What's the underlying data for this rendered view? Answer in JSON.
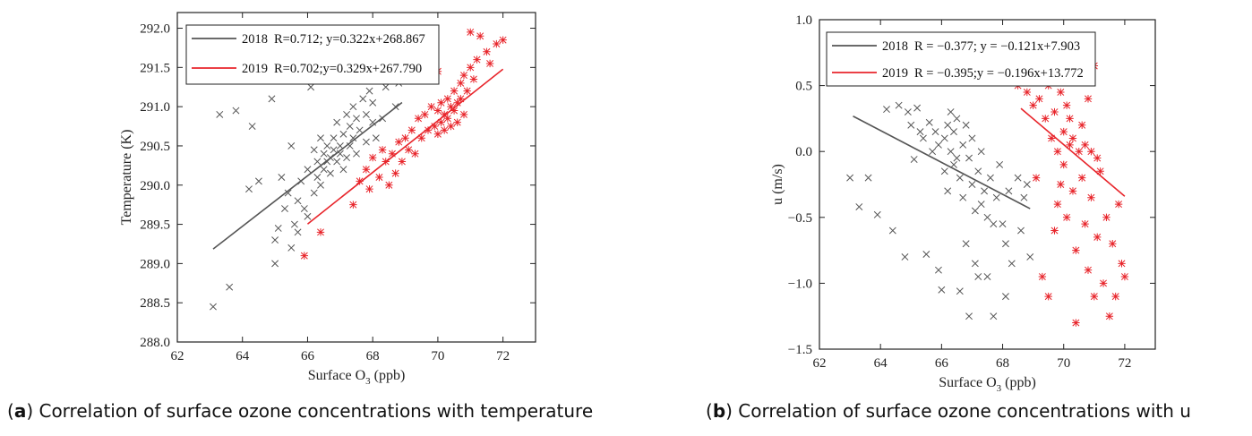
{
  "chart_data": [
    {
      "type": "scatter",
      "panel": "a",
      "xlabel_main": "Surface O",
      "xlabel_sub": "3",
      "xlabel_unit": " (ppb)",
      "ylabel": "Temperature (K)",
      "xlim": [
        62,
        73
      ],
      "ylim": [
        288.0,
        292.2
      ],
      "xticks": [
        "62",
        "64",
        "66",
        "68",
        "70",
        "72"
      ],
      "xtick_values": [
        62,
        64,
        66,
        68,
        70,
        72
      ],
      "yticks": [
        "288.0",
        "288.5",
        "289.0",
        "289.5",
        "290.0",
        "290.5",
        "291.0",
        "291.5",
        "292.0"
      ],
      "ytick_values": [
        288.0,
        288.5,
        289.0,
        289.5,
        290.0,
        290.5,
        291.0,
        291.5,
        292.0
      ],
      "legend": "top-left",
      "series": [
        {
          "name": "2018",
          "label": "R=0.712; y=0.322x+268.867",
          "color": "#555555",
          "marker": "x",
          "fit_x": [
            63.1,
            68.9
          ],
          "fit_slope": 0.322,
          "fit_intercept": 268.867,
          "points": [
            [
              63.1,
              288.45
            ],
            [
              63.3,
              290.9
            ],
            [
              63.6,
              288.7
            ],
            [
              63.8,
              290.95
            ],
            [
              64.2,
              289.95
            ],
            [
              64.3,
              290.75
            ],
            [
              64.5,
              290.05
            ],
            [
              64.9,
              291.1
            ],
            [
              65.0,
              289.0
            ],
            [
              65.0,
              289.3
            ],
            [
              65.1,
              289.45
            ],
            [
              65.2,
              290.1
            ],
            [
              65.3,
              289.7
            ],
            [
              65.4,
              289.9
            ],
            [
              65.5,
              289.2
            ],
            [
              65.5,
              290.5
            ],
            [
              65.6,
              289.5
            ],
            [
              65.7,
              289.4
            ],
            [
              65.7,
              289.8
            ],
            [
              65.8,
              290.05
            ],
            [
              65.9,
              289.7
            ],
            [
              66.0,
              289.6
            ],
            [
              66.0,
              290.2
            ],
            [
              66.1,
              291.25
            ],
            [
              66.2,
              289.9
            ],
            [
              66.2,
              290.45
            ],
            [
              66.3,
              290.3
            ],
            [
              66.3,
              290.1
            ],
            [
              66.4,
              290.6
            ],
            [
              66.4,
              290.0
            ],
            [
              66.5,
              290.4
            ],
            [
              66.5,
              290.2
            ],
            [
              66.6,
              290.5
            ],
            [
              66.6,
              290.3
            ],
            [
              66.7,
              290.35
            ],
            [
              66.7,
              290.15
            ],
            [
              66.8,
              290.6
            ],
            [
              66.8,
              290.45
            ],
            [
              66.9,
              290.3
            ],
            [
              66.9,
              290.8
            ],
            [
              67.0,
              290.4
            ],
            [
              67.0,
              290.5
            ],
            [
              67.1,
              290.2
            ],
            [
              67.1,
              290.65
            ],
            [
              67.2,
              290.35
            ],
            [
              67.2,
              290.9
            ],
            [
              67.3,
              290.5
            ],
            [
              67.3,
              290.75
            ],
            [
              67.4,
              290.6
            ],
            [
              67.4,
              291.0
            ],
            [
              67.5,
              290.4
            ],
            [
              67.5,
              290.85
            ],
            [
              67.6,
              290.7
            ],
            [
              67.7,
              291.1
            ],
            [
              67.8,
              290.55
            ],
            [
              67.8,
              290.9
            ],
            [
              67.9,
              291.2
            ],
            [
              68.0,
              290.8
            ],
            [
              68.0,
              291.05
            ],
            [
              68.1,
              290.6
            ],
            [
              68.2,
              291.35
            ],
            [
              68.3,
              290.85
            ],
            [
              68.4,
              291.25
            ],
            [
              68.5,
              291.45
            ],
            [
              68.6,
              291.6
            ],
            [
              68.7,
              291.0
            ],
            [
              68.8,
              291.3
            ]
          ]
        },
        {
          "name": "2019",
          "label": "R=0.702;y=0.329x+267.790",
          "color": "#e8252b",
          "marker": "asterisk",
          "fit_x": [
            66.0,
            72.0
          ],
          "fit_slope": 0.329,
          "fit_intercept": 267.79,
          "points": [
            [
              65.9,
              289.1
            ],
            [
              66.4,
              289.4
            ],
            [
              67.4,
              289.75
            ],
            [
              67.6,
              290.05
            ],
            [
              67.8,
              290.2
            ],
            [
              67.9,
              289.95
            ],
            [
              68.0,
              290.35
            ],
            [
              68.2,
              290.1
            ],
            [
              68.3,
              290.45
            ],
            [
              68.4,
              290.3
            ],
            [
              68.5,
              290.0
            ],
            [
              68.6,
              290.4
            ],
            [
              68.7,
              290.15
            ],
            [
              68.8,
              290.55
            ],
            [
              68.9,
              290.3
            ],
            [
              69.0,
              290.6
            ],
            [
              69.1,
              290.45
            ],
            [
              69.2,
              290.7
            ],
            [
              69.3,
              290.4
            ],
            [
              69.4,
              290.85
            ],
            [
              69.5,
              290.6
            ],
            [
              69.6,
              290.9
            ],
            [
              69.7,
              290.7
            ],
            [
              69.8,
              291.0
            ],
            [
              69.9,
              290.75
            ],
            [
              70.0,
              290.65
            ],
            [
              70.0,
              290.95
            ],
            [
              70.1,
              290.8
            ],
            [
              70.1,
              291.05
            ],
            [
              70.2,
              290.7
            ],
            [
              70.2,
              290.9
            ],
            [
              70.3,
              291.1
            ],
            [
              70.3,
              290.85
            ],
            [
              70.4,
              291.0
            ],
            [
              70.4,
              290.75
            ],
            [
              70.5,
              291.2
            ],
            [
              70.5,
              290.95
            ],
            [
              70.6,
              291.05
            ],
            [
              70.6,
              290.8
            ],
            [
              70.7,
              291.3
            ],
            [
              70.7,
              291.1
            ],
            [
              70.8,
              290.9
            ],
            [
              70.8,
              291.4
            ],
            [
              70.9,
              291.2
            ],
            [
              71.0,
              291.5
            ],
            [
              71.0,
              291.95
            ],
            [
              71.1,
              291.35
            ],
            [
              71.2,
              291.6
            ],
            [
              71.3,
              291.9
            ],
            [
              71.5,
              291.7
            ],
            [
              71.6,
              291.55
            ],
            [
              71.8,
              291.8
            ],
            [
              72.0,
              291.85
            ],
            [
              69.7,
              291.95
            ],
            [
              70.0,
              291.45
            ]
          ]
        }
      ]
    },
    {
      "type": "scatter",
      "panel": "b",
      "xlabel_main": "Surface O",
      "xlabel_sub": "3",
      "xlabel_unit": " (ppb)",
      "ylabel": "u (m/s)",
      "xlim": [
        62,
        73
      ],
      "ylim": [
        -1.5,
        1.0
      ],
      "xticks": [
        "62",
        "64",
        "66",
        "68",
        "70",
        "72"
      ],
      "xtick_values": [
        62,
        64,
        66,
        68,
        70,
        72
      ],
      "yticks": [
        "1.0",
        "0.5",
        "0.0",
        "−0.5",
        "−1.0",
        "−1.5"
      ],
      "ytick_values": [
        1.0,
        0.5,
        0.0,
        -0.5,
        -1.0,
        -1.5
      ],
      "legend": "top-left",
      "series": [
        {
          "name": "2018",
          "label": "R = −0.377; y = −0.121x+7.903",
          "color": "#555555",
          "marker": "x",
          "fit_x": [
            63.1,
            68.9
          ],
          "fit_slope": -0.121,
          "fit_intercept": 7.903,
          "points": [
            [
              63.0,
              -0.2
            ],
            [
              63.3,
              -0.42
            ],
            [
              63.6,
              -0.2
            ],
            [
              63.9,
              -0.48
            ],
            [
              64.2,
              0.32
            ],
            [
              64.4,
              -0.6
            ],
            [
              64.6,
              0.35
            ],
            [
              64.8,
              -0.8
            ],
            [
              64.9,
              0.3
            ],
            [
              65.0,
              0.2
            ],
            [
              65.1,
              -0.06
            ],
            [
              65.2,
              0.33
            ],
            [
              65.3,
              0.15
            ],
            [
              65.4,
              0.1
            ],
            [
              65.5,
              -0.78
            ],
            [
              65.6,
              0.22
            ],
            [
              65.7,
              0.0
            ],
            [
              65.8,
              0.15
            ],
            [
              65.9,
              -0.9
            ],
            [
              65.9,
              0.05
            ],
            [
              66.0,
              -1.05
            ],
            [
              66.1,
              0.1
            ],
            [
              66.1,
              -0.15
            ],
            [
              66.2,
              0.2
            ],
            [
              66.2,
              -0.3
            ],
            [
              66.3,
              0.0
            ],
            [
              66.3,
              0.3
            ],
            [
              66.4,
              -0.1
            ],
            [
              66.4,
              0.15
            ],
            [
              66.5,
              -0.05
            ],
            [
              66.5,
              0.25
            ],
            [
              66.6,
              -1.06
            ],
            [
              66.6,
              -0.2
            ],
            [
              66.7,
              0.05
            ],
            [
              66.7,
              -0.35
            ],
            [
              66.8,
              0.2
            ],
            [
              66.8,
              -0.7
            ],
            [
              66.9,
              -0.05
            ],
            [
              66.9,
              -1.25
            ],
            [
              67.0,
              -0.25
            ],
            [
              67.0,
              0.1
            ],
            [
              67.1,
              -0.45
            ],
            [
              67.1,
              -0.85
            ],
            [
              67.2,
              -0.15
            ],
            [
              67.2,
              -0.95
            ],
            [
              67.3,
              0.0
            ],
            [
              67.3,
              -0.4
            ],
            [
              67.4,
              -0.3
            ],
            [
              67.5,
              -0.95
            ],
            [
              67.5,
              -0.5
            ],
            [
              67.6,
              -0.2
            ],
            [
              67.7,
              -1.25
            ],
            [
              67.7,
              -0.55
            ],
            [
              67.8,
              -0.35
            ],
            [
              67.9,
              -0.1
            ],
            [
              68.0,
              -0.55
            ],
            [
              68.1,
              -0.7
            ],
            [
              68.1,
              -1.1
            ],
            [
              68.2,
              -0.3
            ],
            [
              68.3,
              -0.85
            ],
            [
              68.5,
              -0.2
            ],
            [
              68.6,
              -0.6
            ],
            [
              68.7,
              -0.35
            ],
            [
              68.8,
              -0.25
            ],
            [
              68.9,
              -0.8
            ]
          ]
        },
        {
          "name": "2019",
          "label": "R = −0.395;y = −0.196x+13.772",
          "color": "#e8252b",
          "marker": "asterisk",
          "fit_x": [
            68.6,
            72.0
          ],
          "fit_slope": -0.196,
          "fit_intercept": 13.772,
          "points": [
            [
              68.2,
              0.6
            ],
            [
              68.5,
              0.5
            ],
            [
              68.8,
              0.45
            ],
            [
              69.0,
              0.35
            ],
            [
              69.1,
              -0.2
            ],
            [
              69.2,
              0.4
            ],
            [
              69.3,
              -0.95
            ],
            [
              69.4,
              0.25
            ],
            [
              69.5,
              -1.1
            ],
            [
              69.5,
              0.5
            ],
            [
              69.6,
              0.1
            ],
            [
              69.7,
              -0.6
            ],
            [
              69.7,
              0.3
            ],
            [
              69.8,
              0.0
            ],
            [
              69.8,
              -0.4
            ],
            [
              69.9,
              0.45
            ],
            [
              69.9,
              -0.25
            ],
            [
              70.0,
              0.15
            ],
            [
              70.0,
              -0.1
            ],
            [
              70.1,
              0.35
            ],
            [
              70.1,
              -0.5
            ],
            [
              70.2,
              0.05
            ],
            [
              70.2,
              0.25
            ],
            [
              70.3,
              -0.3
            ],
            [
              70.3,
              0.1
            ],
            [
              70.4,
              -0.75
            ],
            [
              70.4,
              -1.3
            ],
            [
              70.5,
              0.0
            ],
            [
              70.5,
              0.6
            ],
            [
              70.6,
              -0.2
            ],
            [
              70.6,
              0.2
            ],
            [
              70.7,
              -0.55
            ],
            [
              70.7,
              0.05
            ],
            [
              70.8,
              -0.9
            ],
            [
              70.8,
              0.4
            ],
            [
              70.9,
              -0.35
            ],
            [
              70.9,
              0.0
            ],
            [
              71.0,
              -1.1
            ],
            [
              71.0,
              0.65
            ],
            [
              71.1,
              -0.65
            ],
            [
              71.1,
              -0.05
            ],
            [
              71.2,
              -0.15
            ],
            [
              71.3,
              -1.0
            ],
            [
              71.4,
              -0.5
            ],
            [
              71.5,
              -1.25
            ],
            [
              71.6,
              -0.7
            ],
            [
              71.7,
              -1.1
            ],
            [
              71.8,
              -0.4
            ],
            [
              71.9,
              -0.85
            ],
            [
              72.0,
              -0.95
            ]
          ]
        }
      ]
    }
  ],
  "captions": {
    "a_letter": "a",
    "a_text": " Correlation of surface ozone concentrations with temperature",
    "b_letter": "b",
    "b_text": " Correlation of surface ozone concentrations with u"
  }
}
